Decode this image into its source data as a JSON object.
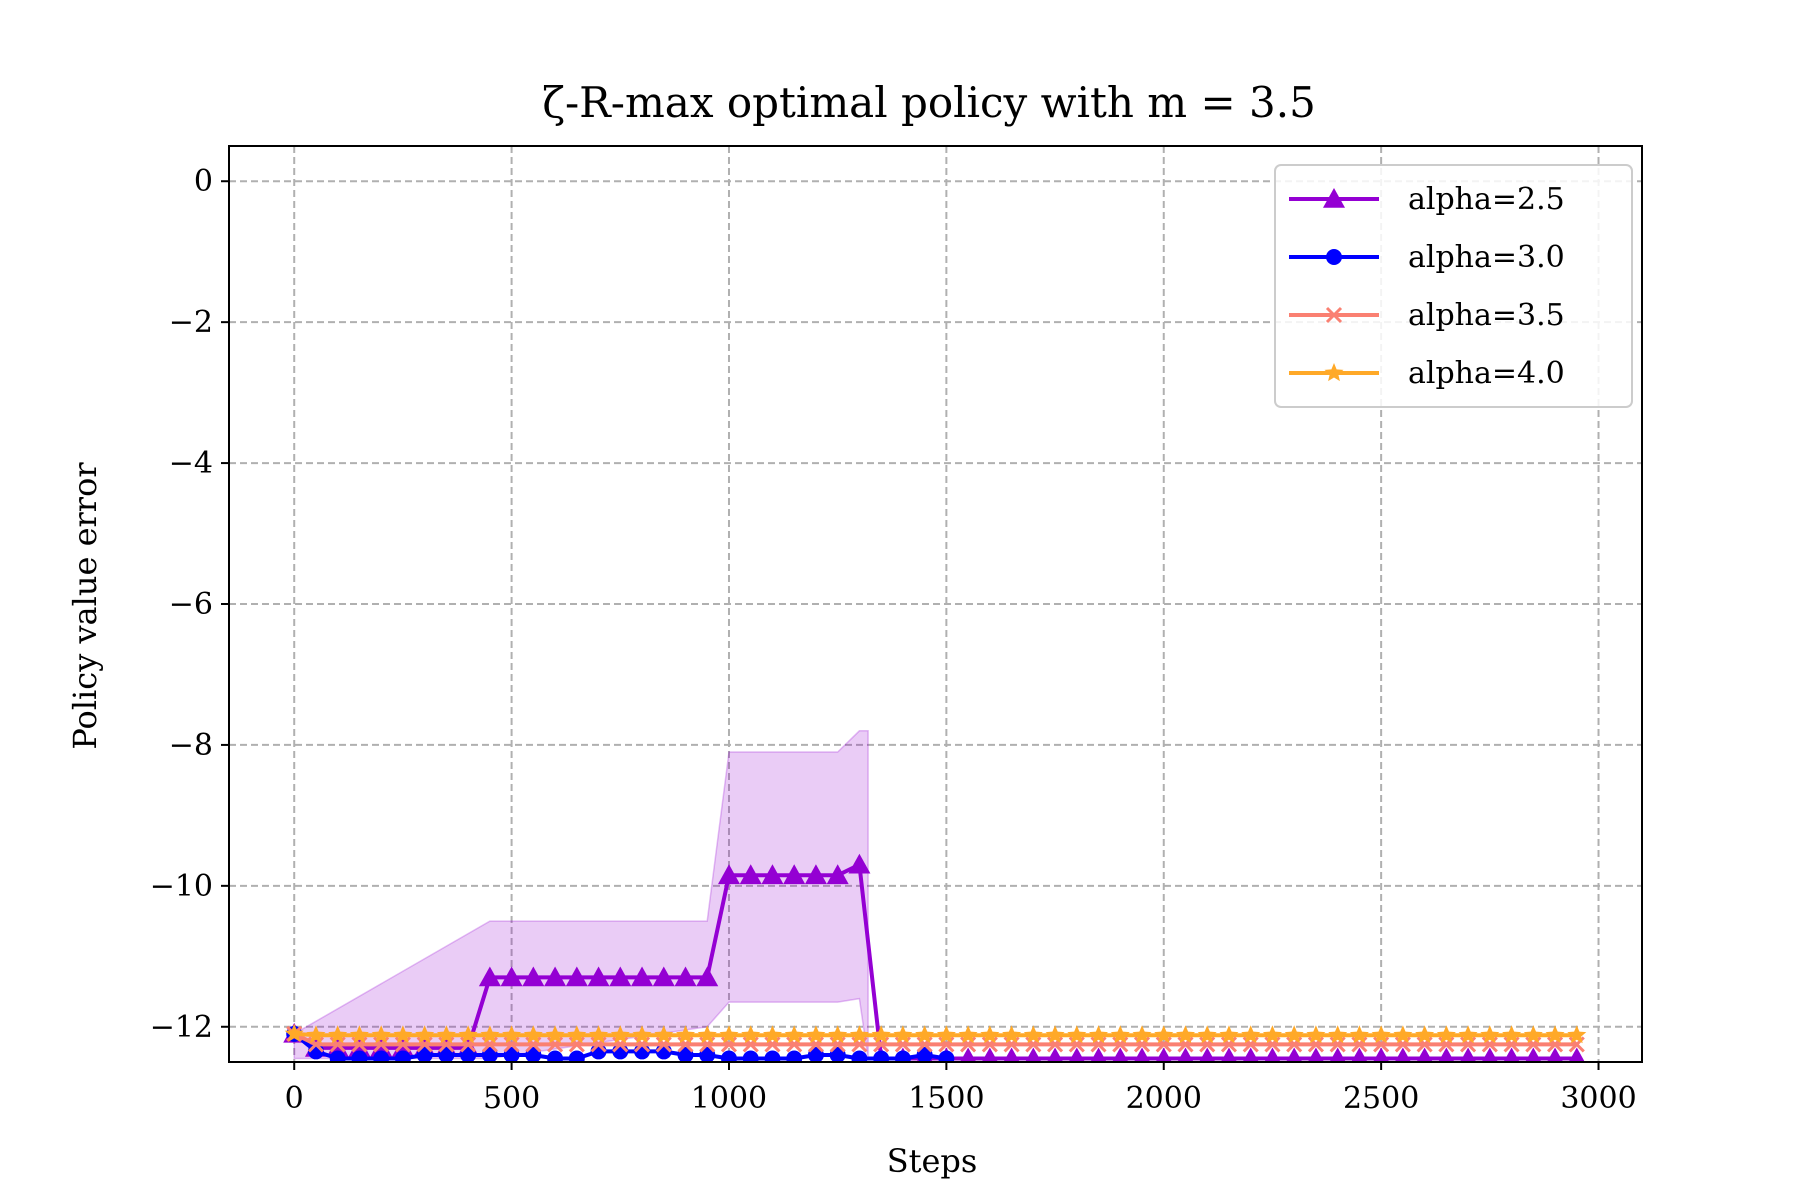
{
  "chart_data": {
    "type": "line",
    "title": "ζ-R-max optimal policy with m = 3.5",
    "xlabel": "Steps",
    "ylabel": "Policy value error",
    "xlim": [
      -150,
      3100
    ],
    "ylim": [
      -12.5,
      0.5
    ],
    "x_ticks": [
      0,
      500,
      1000,
      1500,
      2000,
      2500,
      3000
    ],
    "x_tick_labels": [
      "0",
      "500",
      "1000",
      "1500",
      "2000",
      "2500",
      "3000"
    ],
    "y_ticks": [
      0,
      -2,
      -4,
      -6,
      -8,
      -10,
      -12
    ],
    "y_tick_labels": [
      "0",
      "−2",
      "−4",
      "−6",
      "−8",
      "−10",
      "−12"
    ],
    "grid": true,
    "legend_position": "top-right",
    "series": [
      {
        "name": "alpha=2.5",
        "color": "#9400D3",
        "marker": "triangle",
        "x": [
          0,
          50,
          100,
          150,
          200,
          250,
          300,
          350,
          400,
          450,
          500,
          550,
          600,
          650,
          700,
          750,
          800,
          850,
          900,
          950,
          1000,
          1050,
          1100,
          1150,
          1200,
          1250,
          1300,
          1350,
          1400,
          1450,
          1500,
          1550,
          1600,
          1650,
          1700,
          1750,
          1800,
          1850,
          1900,
          1950,
          2000,
          2050,
          2100,
          2150,
          2200,
          2250,
          2300,
          2350,
          2400,
          2450,
          2500,
          2550,
          2600,
          2650,
          2700,
          2750,
          2800,
          2850,
          2900,
          2950
        ],
        "values": [
          -12.1,
          -12.3,
          -12.3,
          -12.3,
          -12.3,
          -12.3,
          -12.3,
          -12.3,
          -12.3,
          -11.3,
          -11.3,
          -11.3,
          -11.3,
          -11.3,
          -11.3,
          -11.3,
          -11.3,
          -11.3,
          -11.3,
          -11.3,
          -9.85,
          -9.85,
          -9.85,
          -9.85,
          -9.85,
          -9.85,
          -9.7,
          -12.45,
          -12.45,
          -12.45,
          -12.45,
          -12.45,
          -12.45,
          -12.45,
          -12.45,
          -12.45,
          -12.45,
          -12.45,
          -12.45,
          -12.45,
          -12.45,
          -12.45,
          -12.45,
          -12.45,
          -12.45,
          -12.45,
          -12.45,
          -12.45,
          -12.45,
          -12.45,
          -12.45,
          -12.45,
          -12.45,
          -12.45,
          -12.45,
          -12.45,
          -12.45,
          -12.45,
          -12.45,
          -12.45
        ],
        "band": {
          "x": [
            0,
            450,
            950,
            1000,
            1250,
            1300,
            1320
          ],
          "upper": [
            -12.1,
            -10.5,
            -10.5,
            -8.1,
            -8.1,
            -7.8,
            -7.8
          ],
          "lower": [
            -12.45,
            -12.45,
            -12.0,
            -11.65,
            -11.65,
            -11.6,
            -12.45
          ]
        }
      },
      {
        "name": "alpha=3.0",
        "color": "#0000FF",
        "marker": "circle",
        "x": [
          0,
          50,
          100,
          150,
          200,
          250,
          300,
          350,
          400,
          450,
          500,
          550,
          600,
          650,
          700,
          750,
          800,
          850,
          900,
          950,
          1000,
          1050,
          1100,
          1150,
          1200,
          1250,
          1300,
          1350,
          1400,
          1450,
          1500
        ],
        "values": [
          -12.1,
          -12.35,
          -12.45,
          -12.45,
          -12.45,
          -12.45,
          -12.4,
          -12.4,
          -12.4,
          -12.4,
          -12.4,
          -12.4,
          -12.45,
          -12.45,
          -12.35,
          -12.35,
          -12.35,
          -12.35,
          -12.4,
          -12.4,
          -12.45,
          -12.45,
          -12.45,
          -12.45,
          -12.4,
          -12.4,
          -12.45,
          -12.45,
          -12.45,
          -12.4,
          -12.45
        ]
      },
      {
        "name": "alpha=3.5",
        "color": "#FA8072",
        "marker": "x",
        "x": [
          0,
          50,
          100,
          150,
          200,
          250,
          300,
          350,
          400,
          450,
          500,
          550,
          600,
          650,
          700,
          750,
          800,
          850,
          900,
          950,
          1000,
          1050,
          1100,
          1150,
          1200,
          1250,
          1300,
          1350,
          1400,
          1450,
          1500,
          1550,
          1600,
          1650,
          1700,
          1750,
          1800,
          1850,
          1900,
          1950,
          2000,
          2050,
          2100,
          2150,
          2200,
          2250,
          2300,
          2350,
          2400,
          2450,
          2500,
          2550,
          2600,
          2650,
          2700,
          2750,
          2800,
          2850,
          2900,
          2950
        ],
        "values": [
          -12.1,
          -12.25,
          -12.25,
          -12.25,
          -12.25,
          -12.25,
          -12.25,
          -12.25,
          -12.25,
          -12.25,
          -12.25,
          -12.25,
          -12.25,
          -12.25,
          -12.25,
          -12.25,
          -12.25,
          -12.25,
          -12.25,
          -12.25,
          -12.25,
          -12.25,
          -12.25,
          -12.25,
          -12.25,
          -12.25,
          -12.25,
          -12.25,
          -12.25,
          -12.25,
          -12.25,
          -12.25,
          -12.25,
          -12.25,
          -12.25,
          -12.25,
          -12.25,
          -12.25,
          -12.25,
          -12.25,
          -12.25,
          -12.25,
          -12.25,
          -12.25,
          -12.25,
          -12.25,
          -12.25,
          -12.25,
          -12.25,
          -12.25,
          -12.25,
          -12.25,
          -12.25,
          -12.25,
          -12.25,
          -12.25,
          -12.25,
          -12.25,
          -12.25,
          -12.25
        ]
      },
      {
        "name": "alpha=4.0",
        "color": "#FFA928",
        "marker": "star",
        "x": [
          0,
          50,
          100,
          150,
          200,
          250,
          300,
          350,
          400,
          450,
          500,
          550,
          600,
          650,
          700,
          750,
          800,
          850,
          900,
          950,
          1000,
          1050,
          1100,
          1150,
          1200,
          1250,
          1300,
          1350,
          1400,
          1450,
          1500,
          1550,
          1600,
          1650,
          1700,
          1750,
          1800,
          1850,
          1900,
          1950,
          2000,
          2050,
          2100,
          2150,
          2200,
          2250,
          2300,
          2350,
          2400,
          2450,
          2500,
          2550,
          2600,
          2650,
          2700,
          2750,
          2800,
          2850,
          2900,
          2950
        ],
        "values": [
          -12.1,
          -12.12,
          -12.12,
          -12.12,
          -12.12,
          -12.12,
          -12.12,
          -12.12,
          -12.12,
          -12.12,
          -12.12,
          -12.12,
          -12.12,
          -12.12,
          -12.12,
          -12.12,
          -12.12,
          -12.12,
          -12.12,
          -12.12,
          -12.12,
          -12.12,
          -12.12,
          -12.12,
          -12.12,
          -12.12,
          -12.12,
          -12.12,
          -12.12,
          -12.12,
          -12.12,
          -12.12,
          -12.12,
          -12.12,
          -12.12,
          -12.12,
          -12.12,
          -12.12,
          -12.12,
          -12.12,
          -12.12,
          -12.12,
          -12.12,
          -12.12,
          -12.12,
          -12.12,
          -12.12,
          -12.12,
          -12.12,
          -12.12,
          -12.12,
          -12.12,
          -12.12,
          -12.12,
          -12.12,
          -12.12,
          -12.12,
          -12.12,
          -12.12,
          -12.12
        ]
      }
    ]
  }
}
